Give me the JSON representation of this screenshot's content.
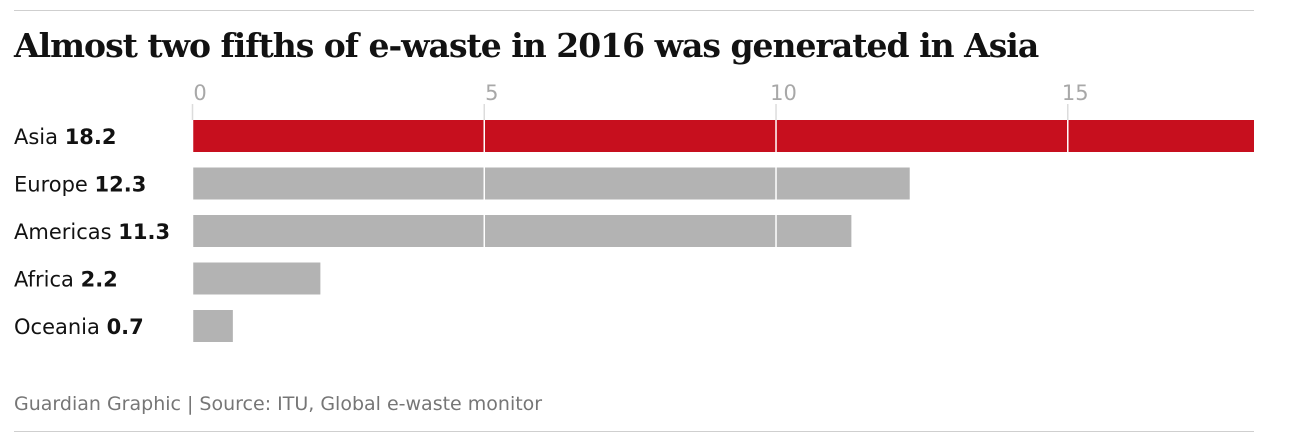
{
  "chart_data": {
    "type": "bar",
    "orientation": "horizontal",
    "title": "Almost two fifths of e-waste in 2016 was generated in Asia",
    "categories": [
      "Asia",
      "Europe",
      "Americas",
      "Africa",
      "Oceania"
    ],
    "values": [
      18.2,
      12.3,
      11.3,
      2.2,
      0.7
    ],
    "value_labels": [
      "18.2",
      "12.3",
      "11.3",
      "2.2",
      "0.7"
    ],
    "xticks": [
      0,
      5,
      10,
      15
    ],
    "xtick_labels": [
      "0",
      "5",
      "10",
      "15"
    ],
    "xlim": [
      0,
      18.2
    ],
    "grid": true,
    "colors": {
      "highlight": "#c70f1e",
      "default": "#b3b3b3",
      "gridline": "#ffffff",
      "axis_tick": "#dcdcdc"
    },
    "highlight_category": "Asia"
  },
  "source": "Guardian Graphic | Source: ITU, Global e-waste monitor"
}
